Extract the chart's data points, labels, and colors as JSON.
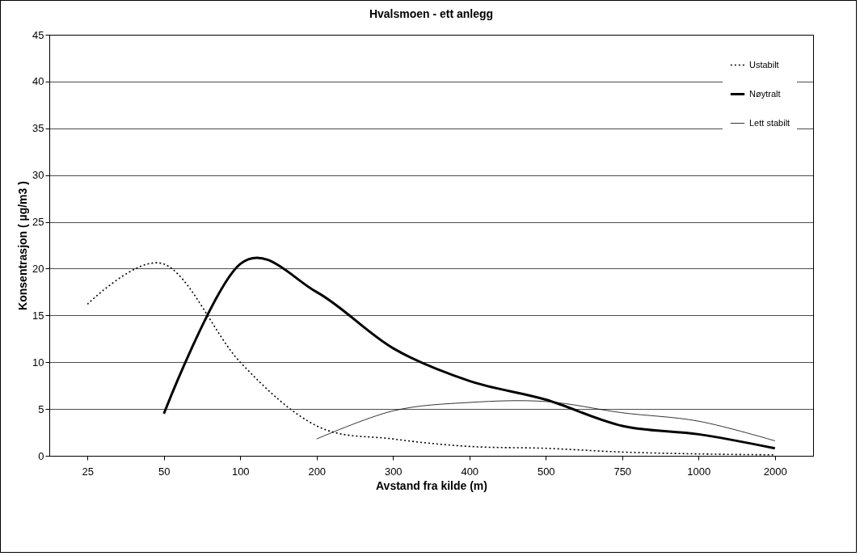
{
  "chart_data": {
    "type": "line",
    "title": "Hvalsmoen - ett anlegg",
    "xlabel": "Avstand fra kilde (m)",
    "ylabel": "Konsentrasjon ( µg/m3 )",
    "categories": [
      "25",
      "50",
      "100",
      "200",
      "300",
      "400",
      "500",
      "750",
      "1000",
      "2000"
    ],
    "ylim": [
      0,
      45
    ],
    "yticks": [
      0,
      5,
      10,
      15,
      20,
      25,
      30,
      35,
      40,
      45
    ],
    "grid": "y",
    "legend": "top right",
    "marker": "none",
    "series": [
      {
        "name": "Ustabilt",
        "color": "#000000",
        "line_style": "dotted",
        "values": [
          16.2,
          20.5,
          10,
          3.2,
          1.8,
          1.0,
          0.8,
          0.4,
          0.2,
          0.1
        ]
      },
      {
        "name": "Nøytralt",
        "color": "#000000",
        "line_style": "solid",
        "values": [
          null,
          4.5,
          20.5,
          17.5,
          11.5,
          8,
          6,
          3.2,
          2.3,
          0.8
        ]
      },
      {
        "name": "Lett stabilt",
        "color": "#000000",
        "line_style": "solid",
        "values": [
          null,
          null,
          null,
          1.8,
          4.8,
          5.7,
          5.8,
          4.6,
          3.7,
          1.6
        ]
      }
    ]
  }
}
